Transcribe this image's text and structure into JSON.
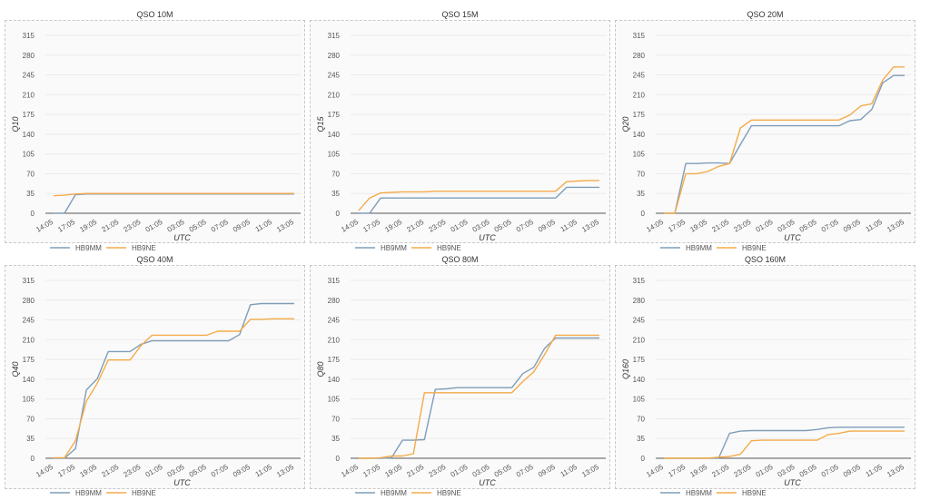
{
  "colors": {
    "HB9MM": "#7f9db9",
    "HB9NE": "#f4ab4a",
    "grid": "#ebebeb",
    "axis": "#555555"
  },
  "chart_data": [
    {
      "type": "line",
      "title": "QSO 10M",
      "xlabel": "UTC",
      "ylabel": "Q10",
      "ylim": [
        0,
        315
      ],
      "yticks": [
        0,
        35,
        70,
        105,
        140,
        175,
        210,
        245,
        280,
        315
      ],
      "x": [
        "14:05",
        "16:05",
        "17:05",
        "18:05",
        "19:05",
        "20:05",
        "21:05",
        "22:05",
        "23:05",
        "00:05",
        "01:05",
        "02:05",
        "03:05",
        "04:05",
        "05:05",
        "06:05",
        "07:05",
        "08:05",
        "09:05",
        "10:05",
        "11:05",
        "12:05",
        "13:05"
      ],
      "xticks": [
        "14:05",
        "17:05",
        "19:05",
        "21:05",
        "23:05",
        "01:05",
        "03:05",
        "05:05",
        "07:05",
        "09:05",
        "11:05",
        "13:05"
      ],
      "grid": true,
      "legend": "bottom-left",
      "series": [
        {
          "name": "HB9MM",
          "values": [
            0,
            0,
            33,
            34,
            34,
            34,
            34,
            34,
            34,
            34,
            34,
            34,
            34,
            34,
            34,
            34,
            34,
            34,
            34,
            34,
            34,
            34,
            34
          ]
        },
        {
          "name": "HB9NE",
          "values": [
            31,
            32,
            34,
            35,
            35,
            35,
            35,
            35,
            35,
            35,
            35,
            35,
            35,
            35,
            35,
            35,
            35,
            35,
            35,
            35,
            35,
            35,
            35
          ]
        }
      ]
    },
    {
      "type": "line",
      "title": "QSO 15M",
      "xlabel": "UTC",
      "ylabel": "Q15",
      "ylim": [
        0,
        315
      ],
      "yticks": [
        0,
        35,
        70,
        105,
        140,
        175,
        210,
        245,
        280,
        315
      ],
      "x": [
        "14:05",
        "16:05",
        "17:05",
        "18:05",
        "19:05",
        "20:05",
        "21:05",
        "22:05",
        "23:05",
        "00:05",
        "01:05",
        "02:05",
        "03:05",
        "04:05",
        "05:05",
        "06:05",
        "07:05",
        "08:05",
        "09:05",
        "10:05",
        "11:05",
        "12:05",
        "13:05"
      ],
      "xticks": [
        "14:05",
        "17:05",
        "19:05",
        "21:05",
        "23:05",
        "01:05",
        "03:05",
        "05:05",
        "07:05",
        "09:05",
        "11:05",
        "13:05"
      ],
      "grid": true,
      "legend": "bottom-left",
      "series": [
        {
          "name": "HB9MM",
          "values": [
            0,
            0,
            27,
            27,
            27,
            27,
            27,
            27,
            27,
            27,
            27,
            27,
            27,
            27,
            27,
            27,
            27,
            27,
            27,
            46,
            46,
            46,
            46
          ]
        },
        {
          "name": "HB9NE",
          "values": [
            5,
            27,
            36,
            37,
            38,
            38,
            38,
            39,
            39,
            39,
            39,
            39,
            39,
            39,
            39,
            39,
            39,
            39,
            39,
            56,
            57,
            58,
            58
          ]
        }
      ]
    },
    {
      "type": "line",
      "title": "QSO 20M",
      "xlabel": "UTC",
      "ylabel": "Q20",
      "ylim": [
        0,
        315
      ],
      "yticks": [
        0,
        35,
        70,
        105,
        140,
        175,
        210,
        245,
        280,
        315
      ],
      "x": [
        "14:05",
        "16:05",
        "17:05",
        "18:05",
        "19:05",
        "20:05",
        "21:05",
        "22:05",
        "23:05",
        "00:05",
        "01:05",
        "02:05",
        "03:05",
        "04:05",
        "05:05",
        "06:05",
        "07:05",
        "08:05",
        "09:05",
        "10:05",
        "11:05",
        "12:05",
        "13:05"
      ],
      "xticks": [
        "14:05",
        "17:05",
        "19:05",
        "21:05",
        "23:05",
        "01:05",
        "03:05",
        "05:05",
        "07:05",
        "09:05",
        "11:05",
        "13:05"
      ],
      "grid": true,
      "legend": "bottom-left",
      "series": [
        {
          "name": "HB9MM",
          "values": [
            0,
            0,
            88,
            88,
            89,
            89,
            88,
            122,
            155,
            155,
            155,
            155,
            155,
            155,
            155,
            155,
            155,
            164,
            166,
            184,
            231,
            244,
            244
          ]
        },
        {
          "name": "HB9NE",
          "values": [
            0,
            0,
            70,
            70,
            74,
            83,
            88,
            151,
            165,
            165,
            165,
            165,
            165,
            165,
            165,
            165,
            165,
            174,
            190,
            194,
            236,
            259,
            259
          ]
        }
      ]
    },
    {
      "type": "line",
      "title": "QSO 40M",
      "xlabel": "UTC",
      "ylabel": "Q40",
      "ylim": [
        0,
        315
      ],
      "yticks": [
        0,
        35,
        70,
        105,
        140,
        175,
        210,
        245,
        280,
        315
      ],
      "x": [
        "14:05",
        "16:05",
        "17:05",
        "18:05",
        "19:05",
        "20:05",
        "21:05",
        "22:05",
        "23:05",
        "00:05",
        "01:05",
        "02:05",
        "03:05",
        "04:05",
        "05:05",
        "06:05",
        "07:05",
        "08:05",
        "09:05",
        "10:05",
        "11:05",
        "12:05",
        "13:05"
      ],
      "xticks": [
        "14:05",
        "17:05",
        "19:05",
        "21:05",
        "23:05",
        "01:05",
        "03:05",
        "05:05",
        "07:05",
        "09:05",
        "11:05",
        "13:05"
      ],
      "grid": true,
      "legend": "bottom-left",
      "series": [
        {
          "name": "HB9MM",
          "values": [
            0,
            0,
            17,
            121,
            141,
            189,
            189,
            189,
            202,
            208,
            208,
            208,
            208,
            208,
            208,
            208,
            208,
            219,
            272,
            274,
            274,
            274,
            274
          ]
        },
        {
          "name": "HB9NE",
          "values": [
            1,
            1,
            31,
            101,
            133,
            174,
            174,
            174,
            200,
            218,
            218,
            218,
            218,
            218,
            218,
            225,
            225,
            225,
            246,
            246,
            247,
            247,
            247
          ]
        }
      ]
    },
    {
      "type": "line",
      "title": "QSO 80M",
      "xlabel": "UTC",
      "ylabel": "Q80",
      "ylim": [
        0,
        315
      ],
      "yticks": [
        0,
        35,
        70,
        105,
        140,
        175,
        210,
        245,
        280,
        315
      ],
      "x": [
        "14:05",
        "16:05",
        "17:05",
        "18:05",
        "19:05",
        "20:05",
        "21:05",
        "22:05",
        "23:05",
        "00:05",
        "01:05",
        "02:05",
        "03:05",
        "04:05",
        "05:05",
        "06:05",
        "07:05",
        "08:05",
        "09:05",
        "10:05",
        "11:05",
        "12:05",
        "13:05"
      ],
      "xticks": [
        "14:05",
        "17:05",
        "19:05",
        "21:05",
        "23:05",
        "01:05",
        "03:05",
        "05:05",
        "07:05",
        "09:05",
        "11:05",
        "13:05"
      ],
      "grid": true,
      "legend": "bottom-left",
      "series": [
        {
          "name": "HB9MM",
          "values": [
            0,
            0,
            0,
            1,
            32,
            32,
            33,
            122,
            123,
            125,
            125,
            125,
            125,
            125,
            125,
            150,
            161,
            195,
            213,
            213,
            213,
            213,
            213
          ]
        },
        {
          "name": "HB9NE",
          "values": [
            0,
            0,
            1,
            4,
            4,
            8,
            116,
            116,
            116,
            116,
            116,
            116,
            116,
            116,
            116,
            136,
            153,
            184,
            218,
            218,
            218,
            218,
            218
          ]
        }
      ]
    },
    {
      "type": "line",
      "title": "QSO 160M",
      "xlabel": "UTC",
      "ylabel": "Q160",
      "ylim": [
        0,
        315
      ],
      "yticks": [
        0,
        35,
        70,
        105,
        140,
        175,
        210,
        245,
        280,
        315
      ],
      "x": [
        "14:05",
        "16:05",
        "17:05",
        "18:05",
        "19:05",
        "20:05",
        "21:05",
        "22:05",
        "23:05",
        "00:05",
        "01:05",
        "02:05",
        "03:05",
        "04:05",
        "05:05",
        "06:05",
        "07:05",
        "08:05",
        "09:05",
        "10:05",
        "11:05",
        "12:05",
        "13:05"
      ],
      "xticks": [
        "14:05",
        "17:05",
        "19:05",
        "21:05",
        "23:05",
        "01:05",
        "03:05",
        "05:05",
        "07:05",
        "09:05",
        "11:05",
        "13:05"
      ],
      "grid": true,
      "legend": "bottom-left",
      "series": [
        {
          "name": "HB9MM",
          "values": [
            0,
            0,
            0,
            0,
            0,
            0,
            44,
            48,
            49,
            49,
            49,
            49,
            49,
            49,
            51,
            54,
            55,
            55,
            55,
            55,
            55,
            55,
            55
          ]
        },
        {
          "name": "HB9NE",
          "values": [
            0,
            0,
            0,
            0,
            0,
            2,
            3,
            7,
            31,
            32,
            32,
            32,
            32,
            32,
            32,
            42,
            44,
            48,
            48,
            48,
            48,
            48,
            48
          ]
        }
      ]
    }
  ]
}
